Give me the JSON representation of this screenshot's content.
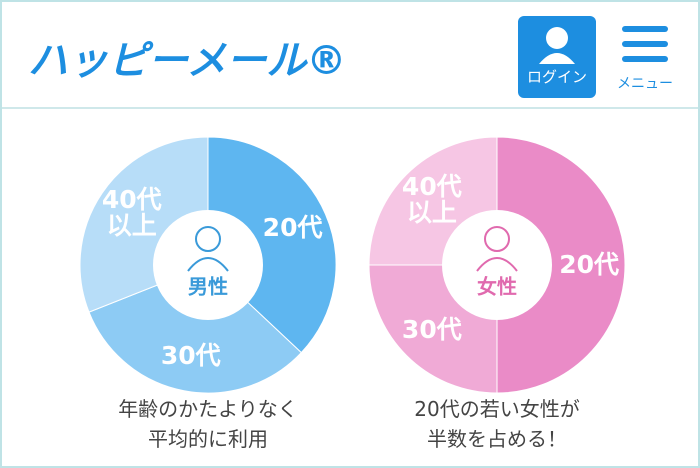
{
  "header": {
    "logo": "ハッピーメール®",
    "login": "ログイン",
    "menu": "メニュー"
  },
  "chart_data": [
    {
      "type": "pie",
      "center_label": "男性",
      "categories": [
        "20代",
        "30代",
        "40代\n以上"
      ],
      "values": [
        37,
        32,
        31
      ],
      "colors": [
        "#5eb6f0",
        "#8dcbf4",
        "#b7ddf8"
      ],
      "center_color": "#3a9ad9",
      "caption": "年齢のかたよりなく\n平均的に利用"
    },
    {
      "type": "pie",
      "center_label": "女性",
      "categories": [
        "20代",
        "30代",
        "40代\n以上"
      ],
      "values": [
        50,
        25,
        25
      ],
      "colors": [
        "#ea8bc7",
        "#f0aad6",
        "#f6c6e4"
      ],
      "center_color": "#e06aae",
      "caption": "20代の若い女性が\n半数を占める！"
    }
  ]
}
